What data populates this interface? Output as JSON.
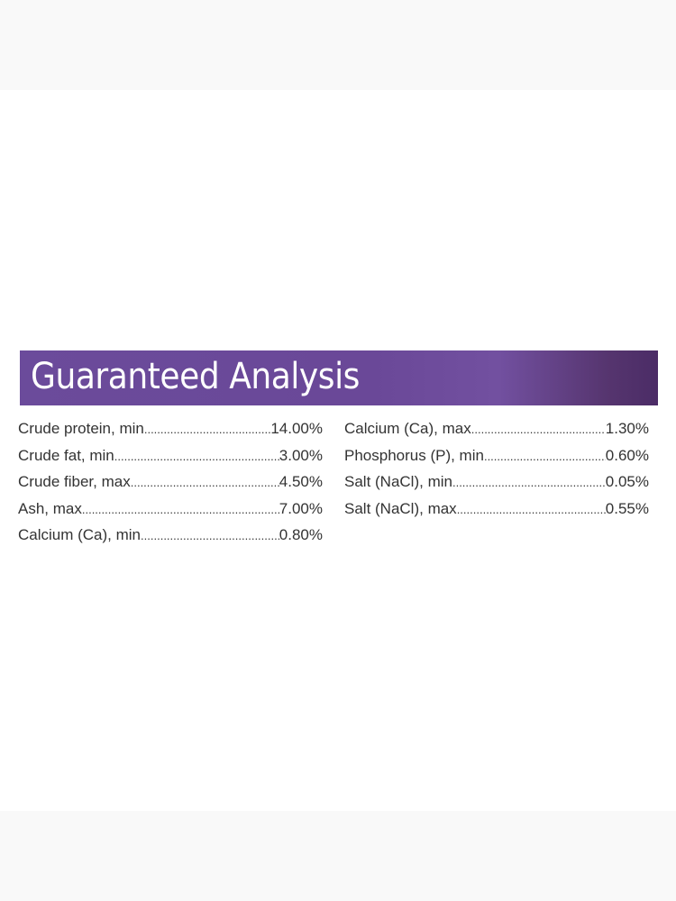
{
  "title": "Guaranteed Analysis",
  "brand_color": "#6b4b9b",
  "left_column": [
    {
      "label": "Crude protein, min",
      "value": "14.00%"
    },
    {
      "label": "Crude fat, min",
      "value": "3.00%"
    },
    {
      "label": "Crude fiber, max",
      "value": "4.50%"
    },
    {
      "label": "Ash, max",
      "value": "7.00%"
    },
    {
      "label": "Calcium (Ca), min",
      "value": "0.80%"
    }
  ],
  "right_column": [
    {
      "label": "Calcium (Ca), max",
      "value": "1.30%"
    },
    {
      "label": "Phosphorus (P), min",
      "value": "0.60%"
    },
    {
      "label": "Salt (NaCl), min",
      "value": "0.05%"
    },
    {
      "label": "Salt (NaCl), max",
      "value": "0.55%"
    }
  ]
}
